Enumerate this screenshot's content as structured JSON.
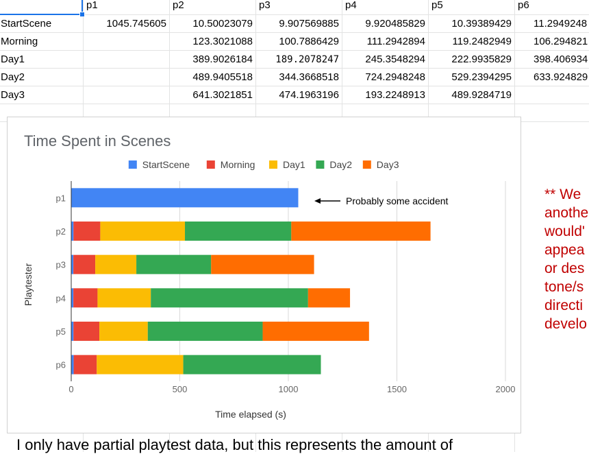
{
  "sheet": {
    "headers": [
      "",
      "p1",
      "p2",
      "p3",
      "p4",
      "p5",
      "p6"
    ],
    "rows": [
      {
        "label": "StartScene",
        "values": [
          "1045.745605",
          "10.50023079",
          "9.907569885",
          "9.920485829",
          "10.39389429",
          "11.2949248"
        ]
      },
      {
        "label": "Morning",
        "values": [
          "",
          "123.3021088",
          "100.7886429",
          "111.2942894",
          "119.2482949",
          "106.294821"
        ]
      },
      {
        "label": "Day1",
        "values": [
          "",
          "389.9026184",
          "189.2078247",
          "245.3548294",
          "222.9935829",
          "398.406934"
        ]
      },
      {
        "label": "Day2",
        "values": [
          "",
          "489.9405518",
          "344.3668518",
          "724.2948248",
          "529.2394295",
          "633.924829"
        ]
      },
      {
        "label": "Day3",
        "values": [
          "",
          "641.3021851",
          "474.1963196",
          "193.2248913",
          "489.9284719",
          ""
        ]
      }
    ]
  },
  "chart_data": {
    "type": "bar",
    "orientation": "horizontal",
    "stacked": true,
    "title": "Time Spent in Scenes",
    "xlabel": "Time elapsed (s)",
    "ylabel": "Playtester",
    "xlim": [
      0,
      2000
    ],
    "xticks": [
      "0",
      "500",
      "1000",
      "1500",
      "2000"
    ],
    "categories": [
      "p1",
      "p2",
      "p3",
      "p4",
      "p5",
      "p6"
    ],
    "legend_position": "top",
    "grid": true,
    "series": [
      {
        "name": "StartScene",
        "color": "#4285f4",
        "values": [
          1045.7,
          10.5,
          9.9,
          9.9,
          10.4,
          11.3
        ]
      },
      {
        "name": "Morning",
        "color": "#ea4335",
        "values": [
          0,
          123.3,
          100.8,
          111.3,
          119.2,
          106.3
        ]
      },
      {
        "name": "Day1",
        "color": "#fbbc04",
        "values": [
          0,
          389.9,
          189.2,
          245.4,
          223.0,
          398.4
        ]
      },
      {
        "name": "Day2",
        "color": "#34a853",
        "values": [
          0,
          489.9,
          344.4,
          724.3,
          529.2,
          633.9
        ]
      },
      {
        "name": "Day3",
        "color": "#ff6d01",
        "values": [
          0,
          641.3,
          474.2,
          193.2,
          489.9,
          0
        ]
      }
    ],
    "annotation": {
      "text": "Probably some accident",
      "category": "p1"
    }
  },
  "note": {
    "text": "** We\nanothe\nwould'\nappea\nor des\ntone/s\ndirecti\ndevelo"
  },
  "bottom_text": "I only have partial playtest data, but this represents the amount of"
}
